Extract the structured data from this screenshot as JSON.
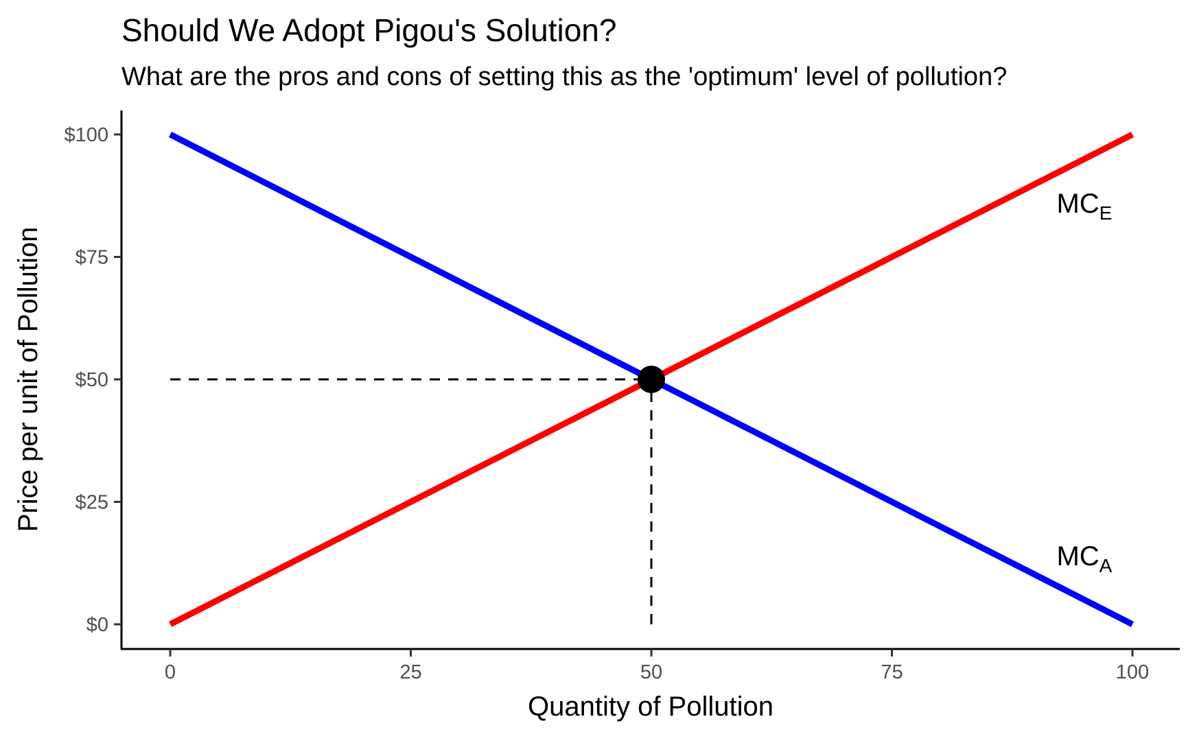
{
  "chart_data": {
    "type": "line",
    "title": "Should We Adopt Pigou's Solution?",
    "subtitle": "What are the pros and cons of setting this as the 'optimum' level of pollution?",
    "xlabel": "Quantity of Pollution",
    "ylabel": "Price per unit of Pollution",
    "xlim": [
      0,
      100
    ],
    "ylim": [
      0,
      100
    ],
    "x_ticks": [
      0,
      25,
      50,
      75,
      100
    ],
    "x_tick_labels": [
      "0",
      "25",
      "50",
      "75",
      "100"
    ],
    "y_ticks": [
      0,
      25,
      50,
      75,
      100
    ],
    "y_tick_labels": [
      "$0",
      "$25",
      "$50",
      "$75",
      "$100"
    ],
    "grid": false,
    "series": [
      {
        "label_main": "MC",
        "label_sub": "E",
        "color": "#ff0000",
        "x": [
          0,
          100
        ],
        "y": [
          0,
          100
        ]
      },
      {
        "label_main": "MC",
        "label_sub": "A",
        "color": "#0000ff",
        "x": [
          0,
          100
        ],
        "y": [
          100,
          0
        ]
      }
    ],
    "equilibrium_point": {
      "x": 50,
      "y": 50,
      "color": "#000000"
    },
    "reference_lines": [
      {
        "from": [
          0,
          50
        ],
        "to": [
          50,
          50
        ],
        "style": "dashed"
      },
      {
        "from": [
          50,
          0
        ],
        "to": [
          50,
          50
        ],
        "style": "dashed"
      }
    ],
    "annotations": [
      {
        "series_index": 0,
        "x": 95,
        "y": 86
      },
      {
        "series_index": 1,
        "x": 95,
        "y": 14
      }
    ]
  }
}
